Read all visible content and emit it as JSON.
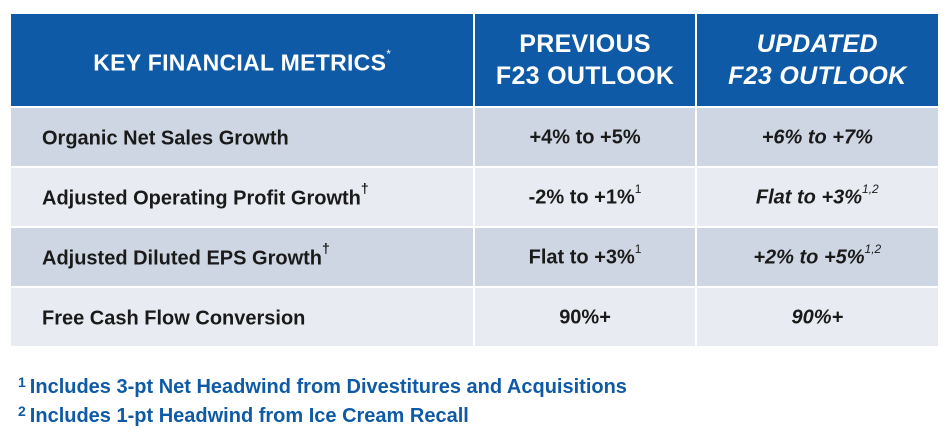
{
  "header": {
    "col1": "KEY FINANCIAL METRICS",
    "col1_mark": "*",
    "col2_line1": "PREVIOUS",
    "col2_line2": "F23 OUTLOOK",
    "col3_line1": "UPDATED",
    "col3_line2": "F23 OUTLOOK"
  },
  "rows": [
    {
      "metric": "Organic Net Sales Growth",
      "metric_mark": "",
      "previous": "+4% to +5%",
      "previous_note": "",
      "updated": "+6% to +7%",
      "updated_note": ""
    },
    {
      "metric": "Adjusted Operating Profit Growth",
      "metric_mark": "†",
      "previous": "-2% to +1%",
      "previous_note": "1",
      "updated": "Flat to +3%",
      "updated_note": "1,2"
    },
    {
      "metric": "Adjusted Diluted EPS Growth",
      "metric_mark": "†",
      "previous": "Flat to +3%",
      "previous_note": "1",
      "updated": "+2% to +5%",
      "updated_note": "1,2"
    },
    {
      "metric": "Free Cash Flow Conversion",
      "metric_mark": "",
      "previous": "90%+",
      "previous_note": "",
      "updated": "90%+",
      "updated_note": ""
    }
  ],
  "footnotes": [
    {
      "num": "1",
      "text": "Includes 3-pt Net Headwind from Divestitures and Acquisitions"
    },
    {
      "num": "2",
      "text": "Includes 1-pt Headwind from Ice Cream Recall"
    }
  ],
  "colors": {
    "header_bg": "#0f5aa6",
    "row_dark": "#cfd6e3",
    "row_light": "#e8ebf1",
    "footnote": "#0f5aa6"
  }
}
